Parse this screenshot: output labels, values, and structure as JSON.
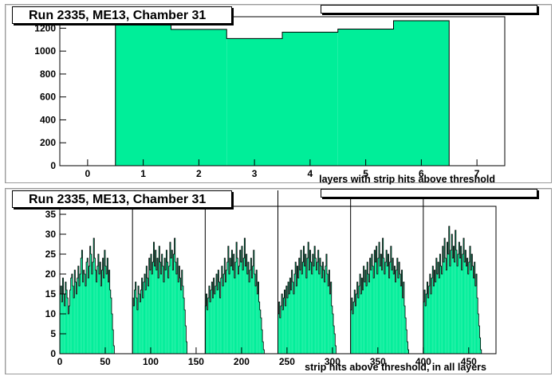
{
  "chart_data": [
    {
      "type": "bar",
      "title": "Run 2335, ME13, Chamber 31",
      "xlabel": "layers with strip hits above threshold",
      "ylabel": "",
      "xlim": [
        -0.5,
        7.5
      ],
      "ylim": [
        0,
        1300
      ],
      "xticks": [
        0,
        1,
        2,
        3,
        4,
        5,
        6,
        7
      ],
      "yticks": [
        0,
        200,
        400,
        600,
        800,
        1000,
        1200
      ],
      "categories": [
        1,
        2,
        3,
        4,
        5,
        6
      ],
      "values": [
        1228,
        1190,
        1110,
        1165,
        1192,
        1265
      ],
      "fill": "#00ee99"
    },
    {
      "type": "bar",
      "title": "Run 2335, ME13, Chamber 31",
      "xlabel": "strip hits above threshold, in all layers",
      "ylabel": "",
      "xlim": [
        0,
        480
      ],
      "ylim": [
        0,
        37
      ],
      "xticks": [
        0,
        50,
        100,
        150,
        200,
        250,
        300,
        350,
        400,
        450
      ],
      "yticks": [
        0,
        5,
        10,
        15,
        20,
        25,
        30,
        35
      ],
      "layer_boundaries": [
        80,
        160,
        240,
        320,
        400
      ],
      "fill": "#00ee99",
      "x_start": 0,
      "bin_width": 1,
      "values": [
        15,
        17,
        13,
        19,
        15,
        12,
        18,
        16,
        14,
        10,
        12,
        16,
        19,
        20,
        17,
        14,
        21,
        18,
        15,
        19,
        22,
        17,
        20,
        24,
        26,
        18,
        21,
        20,
        17,
        23,
        24,
        19,
        22,
        27,
        25,
        20,
        23,
        29,
        24,
        21,
        18,
        22,
        25,
        20,
        23,
        17,
        21,
        24,
        19,
        26,
        22,
        20,
        24,
        18,
        21,
        16,
        14,
        10,
        6,
        2,
        0,
        0,
        0,
        0,
        0,
        0,
        0,
        0,
        0,
        0,
        0,
        0,
        0,
        0,
        0,
        0,
        0,
        0,
        0,
        0,
        14,
        12,
        16,
        18,
        14,
        11,
        17,
        15,
        13,
        16,
        19,
        14,
        18,
        20,
        16,
        22,
        19,
        17,
        24,
        21,
        25,
        20,
        23,
        28,
        22,
        26,
        21,
        24,
        19,
        27,
        23,
        20,
        25,
        22,
        18,
        24,
        21,
        26,
        23,
        19,
        22,
        28,
        24,
        26,
        21,
        25,
        29,
        23,
        20,
        24,
        18,
        22,
        19,
        16,
        21,
        17,
        14,
        11,
        7,
        3,
        0,
        0,
        0,
        0,
        0,
        0,
        0,
        0,
        0,
        0,
        0,
        0,
        0,
        0,
        0,
        0,
        0,
        0,
        0,
        0,
        12,
        15,
        11,
        14,
        17,
        13,
        16,
        18,
        14,
        19,
        15,
        17,
        20,
        16,
        21,
        18,
        14,
        19,
        22,
        17,
        20,
        24,
        18,
        21,
        23,
        27,
        20,
        24,
        22,
        26,
        21,
        25,
        19,
        23,
        28,
        24,
        20,
        22,
        26,
        23,
        27,
        21,
        24,
        29,
        22,
        25,
        20,
        23,
        18,
        21,
        24,
        19,
        22,
        26,
        20,
        17,
        21,
        15,
        18,
        13,
        11,
        9,
        6,
        3,
        1,
        0,
        0,
        0,
        0,
        0,
        0,
        0,
        0,
        0,
        0,
        0,
        0,
        0,
        0,
        0,
        10,
        13,
        9,
        12,
        15,
        11,
        14,
        16,
        12,
        17,
        14,
        18,
        15,
        19,
        16,
        21,
        18,
        15,
        20,
        23,
        17,
        22,
        19,
        24,
        21,
        26,
        20,
        23,
        27,
        22,
        25,
        19,
        24,
        28,
        21,
        26,
        23,
        20,
        25,
        22,
        27,
        24,
        21,
        23,
        26,
        20,
        24,
        22,
        19,
        23,
        21,
        18,
        22,
        25,
        20,
        17,
        21,
        15,
        18,
        12,
        10,
        7,
        5,
        2,
        0,
        0,
        0,
        0,
        0,
        0,
        0,
        0,
        0,
        0,
        0,
        0,
        0,
        0,
        0,
        0,
        11,
        14,
        10,
        13,
        16,
        12,
        15,
        18,
        14,
        17,
        20,
        15,
        19,
        16,
        22,
        18,
        21,
        17,
        23,
        20,
        18,
        24,
        21,
        25,
        22,
        19,
        26,
        23,
        27,
        20,
        24,
        28,
        22,
        25,
        21,
        29,
        24,
        20,
        23,
        26,
        22,
        25,
        19,
        23,
        27,
        21,
        24,
        20,
        22,
        18,
        21,
        24,
        19,
        23,
        20,
        17,
        21,
        14,
        18,
        12,
        9,
        6,
        3,
        1,
        0,
        0,
        0,
        0,
        0,
        0,
        0,
        0,
        0,
        0,
        0,
        0,
        0,
        0,
        0,
        0,
        13,
        16,
        12,
        15,
        18,
        14,
        17,
        20,
        15,
        19,
        22,
        17,
        21,
        18,
        24,
        20,
        23,
        19,
        25,
        22,
        20,
        27,
        23,
        29,
        24,
        21,
        28,
        25,
        32,
        22,
        26,
        30,
        24,
        27,
        23,
        31,
        26,
        22,
        25,
        28,
        24,
        27,
        21,
        25,
        29,
        23,
        26,
        22,
        24,
        20,
        23,
        27,
        21,
        25,
        22,
        19,
        23,
        17,
        20,
        14,
        10,
        7,
        4,
        1,
        0,
        0,
        0,
        0,
        0
      ]
    }
  ]
}
